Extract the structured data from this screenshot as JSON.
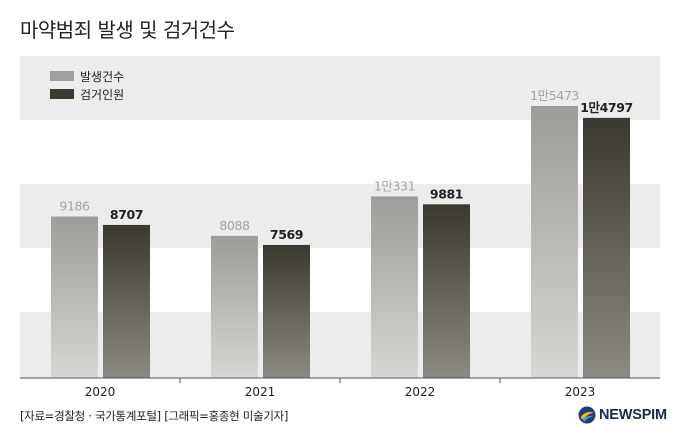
{
  "title": "마약범죄 발생 및 검거건수",
  "chart_data": {
    "type": "bar",
    "categories": [
      "2020",
      "2021",
      "2022",
      "2023"
    ],
    "series": [
      {
        "name": "발생건수",
        "values": [
          9186,
          8088,
          10331,
          15473
        ],
        "labels": [
          "9186",
          "8088",
          "1만331",
          "1만5473"
        ],
        "color": "#9f9f9b"
      },
      {
        "name": "검거인원",
        "values": [
          8707,
          7569,
          9881,
          14797
        ],
        "labels": [
          "8707",
          "7569",
          "9881",
          "1만4797"
        ],
        "color": "#3d3a30"
      }
    ],
    "ylim": [
      0,
      19000
    ],
    "legend": "top-left",
    "grid": false
  },
  "source": "[자료=경찰청 · 국가통계포털] [그래픽=홍종현 미술기자]",
  "logo": {
    "text": "NEWSPIM",
    "icon": "newspim-logo-icon"
  }
}
